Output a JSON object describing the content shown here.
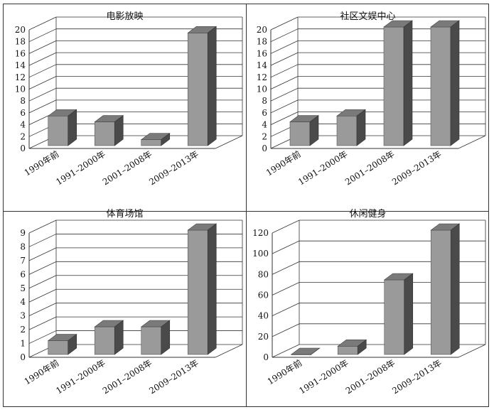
{
  "figure": {
    "colors": {
      "bar_front": "#9a9a9a",
      "bar_top": "#7a7a7a",
      "bar_side": "#4a4a4a",
      "grid": "#333333",
      "text": "#111111"
    }
  },
  "chart_data": [
    {
      "type": "bar",
      "title": "电影放映",
      "categories": [
        "1990年前",
        "1991–2000年",
        "2001–2008年",
        "2009–2013年"
      ],
      "values": [
        5,
        4,
        1,
        19
      ],
      "ylim": [
        0,
        20
      ],
      "yticks": [
        0,
        2,
        4,
        6,
        8,
        10,
        12,
        14,
        16,
        18,
        20
      ],
      "grid": true,
      "style": "3d"
    },
    {
      "type": "bar",
      "title": "社区文娱中心",
      "categories": [
        "1990年前",
        "1991–2000年",
        "2001–2008年",
        "2009–2013年"
      ],
      "values": [
        4,
        5,
        20,
        20
      ],
      "ylim": [
        0,
        20
      ],
      "yticks": [
        0,
        2,
        4,
        6,
        8,
        10,
        12,
        14,
        16,
        18,
        20
      ],
      "grid": true,
      "style": "3d"
    },
    {
      "type": "bar",
      "title": "体育场馆",
      "categories": [
        "1990年前",
        "1991–2000年",
        "2001–2008年",
        "2009–2013年"
      ],
      "values": [
        1,
        2,
        2,
        9
      ],
      "ylim": [
        0,
        9
      ],
      "yticks": [
        0,
        1,
        2,
        3,
        4,
        5,
        6,
        7,
        8,
        9
      ],
      "grid": true,
      "style": "3d"
    },
    {
      "type": "bar",
      "title": "休闲健身",
      "categories": [
        "1990年前",
        "1991–2000年",
        "2001–2008年",
        "2009–2013年"
      ],
      "values": [
        0,
        8,
        72,
        120
      ],
      "ylim": [
        0,
        120
      ],
      "yticks": [
        0,
        20,
        40,
        60,
        80,
        100,
        120
      ],
      "grid": true,
      "style": "3d"
    }
  ]
}
